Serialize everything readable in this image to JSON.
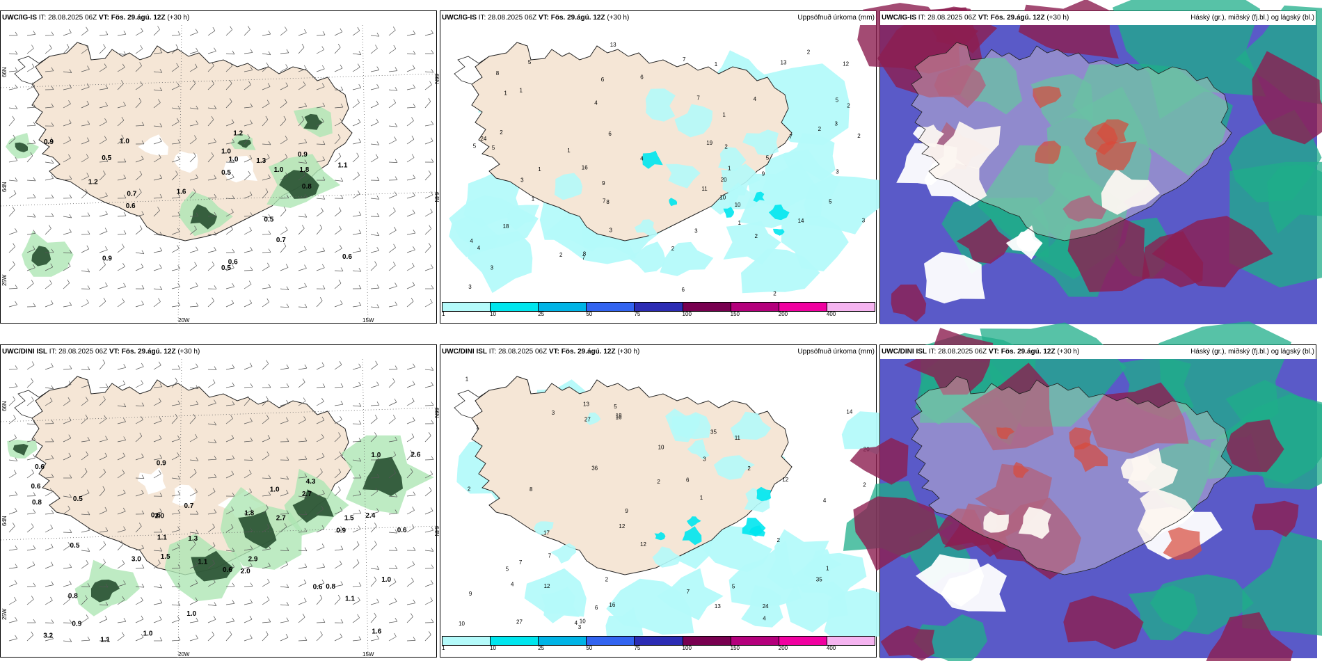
{
  "panels": [
    {
      "id": "p1",
      "type": "wind",
      "header_model": "UWC/IG-IS",
      "header_it_label": "IT:",
      "header_it": "28.08.2025 06Z",
      "header_vt_label": "VT:",
      "header_vt": "Fös. 29.ágú. 12Z",
      "header_offset": "(+30 h)",
      "header_right": "",
      "lat_labels": [
        "66N",
        "64N",
        "25W"
      ],
      "lon_labels": [
        "20W",
        "15W"
      ],
      "right_lat_labels": [
        "66N",
        "64N"
      ],
      "numbers": [
        "0.7",
        "1.0",
        "0.9",
        "0.5",
        "1.2",
        "1.0",
        "0.7",
        "0.6",
        "0.8",
        "0.9",
        "0.6",
        "1.8",
        "1.3",
        "1.1",
        "1.0",
        "0.9",
        "0.5",
        "1.6",
        "0.6",
        "0.5",
        "1.0",
        "0.5",
        "1.2"
      ]
    },
    {
      "id": "p2",
      "type": "precip",
      "header_model": "UWC/IG-IS",
      "header_it_label": "IT:",
      "header_it": "28.08.2025 06Z",
      "header_vt_label": "VT:",
      "header_vt": "Fös. 29.ágú. 12Z",
      "header_offset": "(+30 h)",
      "header_right": "Uppsöfnuð úrkoma (mm)",
      "numbers": [
        "1",
        "1",
        "5",
        "13",
        "3",
        "11",
        "19",
        "18",
        "13",
        "4",
        "2",
        "3",
        "4",
        "7",
        "7",
        "3",
        "10",
        "8",
        "10",
        "9",
        "5",
        "20",
        "24",
        "12",
        "3",
        "5",
        "9",
        "6",
        "2",
        "1",
        "1",
        "4",
        "3",
        "16",
        "6",
        "8",
        "4",
        "2",
        "7",
        "3",
        "5",
        "2",
        "6",
        "2",
        "8",
        "5",
        "7",
        "2",
        "5",
        "2",
        "14",
        "6",
        "3",
        "7",
        "1",
        "2",
        "3",
        "1",
        "1",
        "1",
        "2",
        "4",
        "2",
        "1"
      ]
    },
    {
      "id": "p3",
      "type": "cloud",
      "header_model": "UWC/IG-IS",
      "header_it_label": "IT:",
      "header_it": "28.08.2025 06Z",
      "header_vt_label": "VT:",
      "header_vt": "Fös. 29.ágú. 12Z",
      "header_offset": "(+30 h)",
      "header_right": "Háský (gr.), miðský (fj.bl.) og lágský (bl.)"
    },
    {
      "id": "p4",
      "type": "wind",
      "header_model": "UWC/DINI ISL",
      "header_it_label": "IT:",
      "header_it": "28.08.2025 06Z",
      "header_vt_label": "VT:",
      "header_vt": "Fös. 29.ágú. 12Z",
      "header_offset": "(+30 h)",
      "header_right": "",
      "lat_labels": [
        "66N",
        "64N",
        "25W"
      ],
      "lon_labels": [
        "20W",
        "15W"
      ],
      "right_lat_labels": [
        "66N",
        "64N"
      ],
      "numbers": [
        "2.7",
        "1.1",
        "2.4",
        "0.8",
        "0.6",
        "0.7",
        "0.5",
        "2.0",
        "2.7",
        "0.6",
        "0.6",
        "0.5",
        "0.9",
        "1.0",
        "0.6",
        "0.8",
        "1.0",
        "1.8",
        "1.0",
        "2.9",
        "3.0",
        "3.2",
        "4.3",
        "1.3",
        "0.9",
        "1.1",
        "1.0",
        "0.6",
        "0.6",
        "1.5",
        "1.6",
        "1.1",
        "0.9",
        "1.5",
        "1.0",
        "0.8",
        "1.0",
        "2.6",
        "1.1"
      ]
    },
    {
      "id": "p5",
      "type": "precip",
      "header_model": "UWC/DINI ISL",
      "header_it_label": "IT:",
      "header_it": "28.08.2025 06Z",
      "header_vt_label": "VT:",
      "header_vt": "Fös. 29.ágú. 12Z",
      "header_offset": "(+30 h)",
      "header_right": "Uppsöfnuð úrkoma (mm)",
      "numbers": [
        "1",
        "2",
        "2",
        "1",
        "35",
        "12",
        "20",
        "12",
        "16",
        "13",
        "3",
        "10",
        "27",
        "9",
        "36",
        "35",
        "17",
        "12",
        "7",
        "6",
        "2",
        "13",
        "5",
        "2",
        "11",
        "4",
        "4",
        "1",
        "2",
        "5",
        "18",
        "24",
        "27",
        "12",
        "10",
        "16",
        "14",
        "7",
        "3",
        "5",
        "4",
        "8",
        "9",
        "10",
        "6",
        "7",
        "1",
        "2",
        "3",
        "4"
      ]
    },
    {
      "id": "p6",
      "type": "cloud",
      "header_model": "UWC/DINI ISL",
      "header_it_label": "IT:",
      "header_it": "28.08.2025 06Z",
      "header_vt_label": "VT:",
      "header_vt": "Fös. 29.ágú. 12Z",
      "header_offset": "(+30 h)",
      "header_right": "Háský (gr.), miðský (fj.bl.) og lágský (bl.)"
    }
  ],
  "colorbar": {
    "ticks": [
      "1",
      "10",
      "25",
      "50",
      "75",
      "100",
      "150",
      "200",
      "400"
    ],
    "colors": [
      "#b4fafa",
      "#00e6ee",
      "#00b4e6",
      "#3264f0",
      "#2c2cb4",
      "#780050",
      "#b4007c",
      "#f000a0",
      "#f5b4f0"
    ]
  },
  "colors": {
    "land": "#f5e6d6",
    "precip_light": "#b4fafa",
    "cloud_high": "#1fae8a",
    "cloud_mid": "#5a5ac8",
    "cloud_low": "#8c1e50",
    "wind_light": "#aee6b4",
    "wind_dark": "#1e4628"
  }
}
